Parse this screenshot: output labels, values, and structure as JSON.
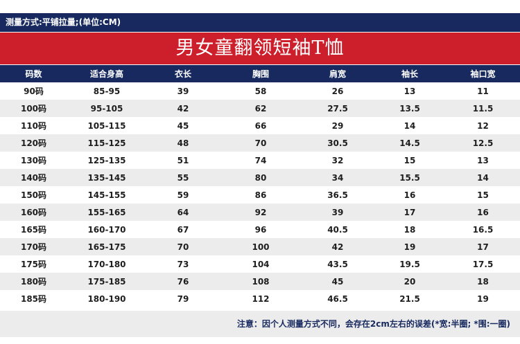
{
  "header": {
    "measure_method": "测量方式:平铺拉量;(单位:CM)",
    "title": "男女童翻领短袖T恤"
  },
  "table": {
    "columns": [
      "码数",
      "适合身高",
      "衣长",
      "胸围",
      "肩宽",
      "袖长",
      "袖口宽"
    ],
    "rows": [
      [
        "90码",
        "85-95",
        "39",
        "58",
        "26",
        "13",
        "11"
      ],
      [
        "100码",
        "95-105",
        "42",
        "62",
        "27.5",
        "13.5",
        "11.5"
      ],
      [
        "110码",
        "105-115",
        "45",
        "66",
        "29",
        "14",
        "12"
      ],
      [
        "120码",
        "115-125",
        "48",
        "70",
        "30.5",
        "14.5",
        "12.5"
      ],
      [
        "130码",
        "125-135",
        "51",
        "74",
        "32",
        "15",
        "13"
      ],
      [
        "140码",
        "135-145",
        "55",
        "80",
        "34",
        "15.5",
        "14"
      ],
      [
        "150码",
        "145-155",
        "59",
        "86",
        "36.5",
        "16",
        "15"
      ],
      [
        "160码",
        "155-165",
        "64",
        "92",
        "39",
        "17",
        "16"
      ],
      [
        "165码",
        "160-170",
        "67",
        "96",
        "40.5",
        "18",
        "16.5"
      ],
      [
        "170码",
        "165-175",
        "70",
        "100",
        "42",
        "19",
        "17"
      ],
      [
        "175码",
        "170-180",
        "73",
        "104",
        "43.5",
        "19.5",
        "17.5"
      ],
      [
        "180码",
        "175-185",
        "76",
        "108",
        "45",
        "20",
        "18"
      ],
      [
        "185码",
        "180-190",
        "79",
        "112",
        "46.5",
        "21.5",
        "19"
      ]
    ]
  },
  "footer": {
    "note": "注意：因个人测量方式不同，会存在2cm左右的误差(*宽:半圈; *围:一圈)"
  },
  "colors": {
    "navy": "#17295f",
    "red": "#cc1e2b",
    "stripe": "#ececec"
  }
}
